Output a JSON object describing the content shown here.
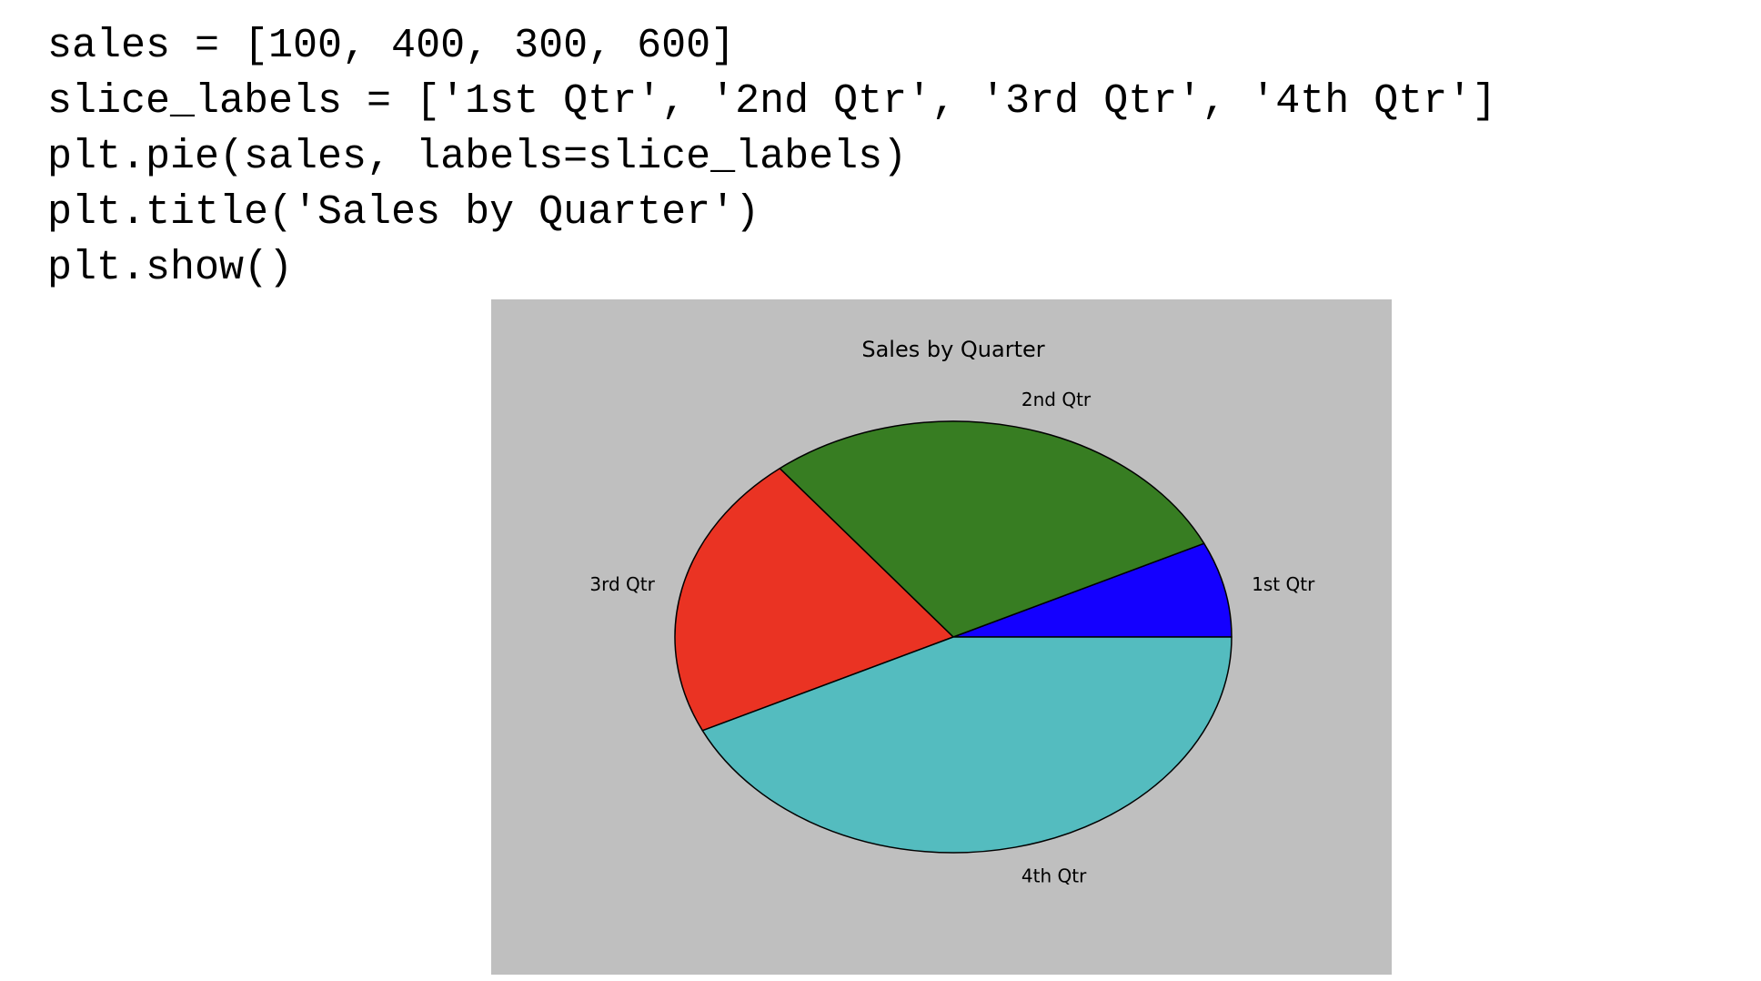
{
  "code": {
    "lines": [
      "sales = [100, 400, 300, 600]",
      "slice_labels = ['1st Qtr', '2nd Qtr', '3rd Qtr', '4th Qtr']",
      "plt.pie(sales, labels=slice_labels)",
      "plt.title('Sales by Quarter')",
      "plt.show()"
    ]
  },
  "chart_data": {
    "type": "pie",
    "title": "Sales by Quarter",
    "labels": [
      "1st Qtr",
      "2nd Qtr",
      "3rd Qtr",
      "4th Qtr"
    ],
    "values": [
      100,
      400,
      300,
      600
    ],
    "colors": [
      "#1400ff",
      "#377d22",
      "#ea3323",
      "#54bcbf"
    ],
    "background": "#bfbfbf",
    "edge_color": "#000000",
    "start_angle_deg": 0,
    "direction": "counterclockwise"
  }
}
